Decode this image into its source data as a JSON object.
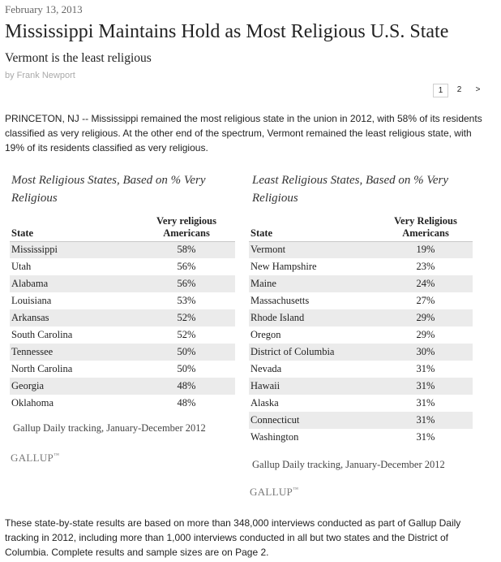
{
  "article": {
    "date": "February 13, 2013",
    "headline": "Mississippi Maintains Hold as Most Religious U.S. State",
    "subhead": "Vermont is the least religious",
    "byline": "by Frank Newport",
    "pagination": {
      "current": "1",
      "next": "2",
      "next_arrow": ">"
    },
    "lead": "PRINCETON, NJ -- Mississippi remained the most religious state in the union in 2012, with 58% of its residents classified as very religious. At the other end of the spectrum, Vermont remained the least religious state, with 19% of its residents classified as very religious.",
    "footer": "These state-by-state results are based on more than 348,000 interviews conducted as part of Gallup Daily tracking in 2012, including more than 1,000 interviews conducted in all but two states and the District of Columbia. Complete results and sample sizes are on Page 2."
  },
  "most": {
    "title": "Most Religious States, Based on % Very Religious",
    "col_state": "State",
    "col_value_1": "Very religious",
    "col_value_2": "Americans",
    "rows": [
      {
        "state": "Mississippi",
        "value": "58%"
      },
      {
        "state": "Utah",
        "value": "56%"
      },
      {
        "state": "Alabama",
        "value": "56%"
      },
      {
        "state": "Louisiana",
        "value": "53%"
      },
      {
        "state": "Arkansas",
        "value": "52%"
      },
      {
        "state": "South Carolina",
        "value": "52%"
      },
      {
        "state": "Tennessee",
        "value": "50%"
      },
      {
        "state": "North Carolina",
        "value": "50%"
      },
      {
        "state": "Georgia",
        "value": "48%"
      },
      {
        "state": "Oklahoma",
        "value": "48%"
      }
    ],
    "source": "Gallup Daily tracking, January-December 2012",
    "brand": "GALLUP",
    "brand_mark": "™"
  },
  "least": {
    "title": "Least Religious States, Based on % Very Religious",
    "col_state": "State",
    "col_value_1": "Very Religious",
    "col_value_2": "Americans",
    "rows": [
      {
        "state": "Vermont",
        "value": "19%"
      },
      {
        "state": "New Hampshire",
        "value": "23%"
      },
      {
        "state": "Maine",
        "value": "24%"
      },
      {
        "state": "Massachusetts",
        "value": "27%"
      },
      {
        "state": "Rhode Island",
        "value": "29%"
      },
      {
        "state": "Oregon",
        "value": "29%"
      },
      {
        "state": "District of Columbia",
        "value": "30%"
      },
      {
        "state": "Nevada",
        "value": "31%"
      },
      {
        "state": "Hawaii",
        "value": "31%"
      },
      {
        "state": "Alaska",
        "value": "31%"
      },
      {
        "state": "Connecticut",
        "value": "31%"
      },
      {
        "state": "Washington",
        "value": "31%"
      }
    ],
    "source": "Gallup Daily tracking, January-December 2012",
    "brand": "GALLUP",
    "brand_mark": "™"
  }
}
